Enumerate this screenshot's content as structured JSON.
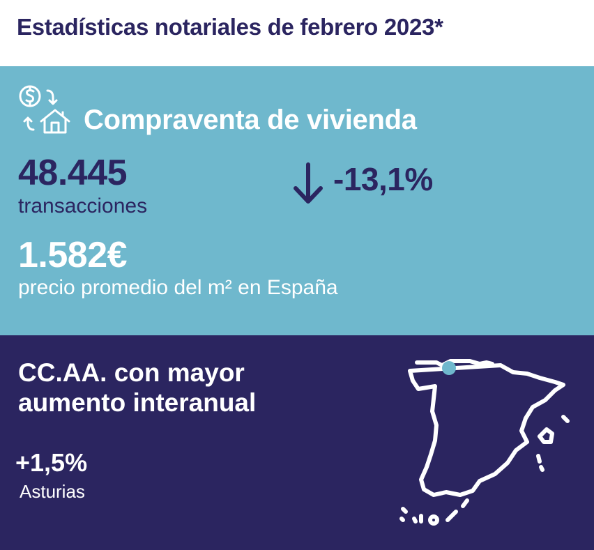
{
  "header": {
    "title": "Estadísticas notariales de febrero 2023*"
  },
  "sales": {
    "heading": "Compraventa de vivienda",
    "icon": "house-exchange-icon",
    "transactions_value": "48.445",
    "transactions_label": "transacciones",
    "change_icon": "arrow-down-icon",
    "change_value": "-13,1%",
    "price_value": "1.582€",
    "price_label": "precio promedio del m² en España"
  },
  "regions": {
    "heading": "CC.AA. con mayor aumento interanual",
    "top_region_value": "+1,5%",
    "top_region_name": "Asturias",
    "map_icon": "spain-map-icon",
    "highlight_color": "#6fb8cd"
  },
  "colors": {
    "navy": "#2b2560",
    "light_blue": "#6fb8cd",
    "white": "#ffffff"
  }
}
